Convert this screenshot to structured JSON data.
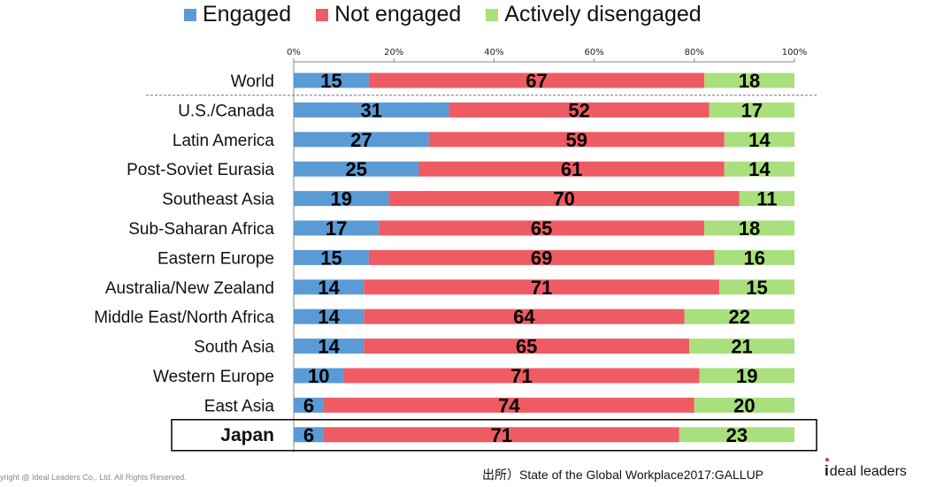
{
  "chart_data": {
    "type": "bar",
    "orientation": "horizontal",
    "stacked": true,
    "percent": true,
    "categories": [
      "World",
      "U.S./Canada",
      "Latin America",
      "Post-Soviet Eurasia",
      "Southeast Asia",
      "Sub-Saharan Africa",
      "Eastern Europe",
      "Australia/New Zealand",
      "Middle East/North Africa",
      "South Asia",
      "Western Europe",
      "East Asia",
      "Japan"
    ],
    "series": [
      {
        "name": "Engaged",
        "color": "#5b9bd5",
        "values": [
          15,
          31,
          27,
          25,
          19,
          17,
          15,
          14,
          14,
          14,
          10,
          6,
          6
        ]
      },
      {
        "name": "Not engaged",
        "color": "#ef5b63",
        "values": [
          67,
          52,
          59,
          61,
          70,
          65,
          69,
          71,
          64,
          65,
          71,
          74,
          71
        ]
      },
      {
        "name": "Actively disengaged",
        "color": "#a9e07d",
        "values": [
          18,
          17,
          14,
          14,
          11,
          18,
          16,
          15,
          22,
          21,
          19,
          20,
          23
        ]
      }
    ],
    "xticks": [
      "0%",
      "20%",
      "40%",
      "60%",
      "80%",
      "100%"
    ],
    "xlim": [
      0,
      100
    ],
    "legend": "top",
    "highlight": "Japan",
    "separator_after": "World"
  },
  "footer": {
    "copyright": "opyright @ Ideal Leaders Co,. Ltd. All Rights Reserved.",
    "source": "出所）State of the Global Workplace2017:GALLUP",
    "logo_i": "i",
    "logo_text": "deal leaders"
  }
}
